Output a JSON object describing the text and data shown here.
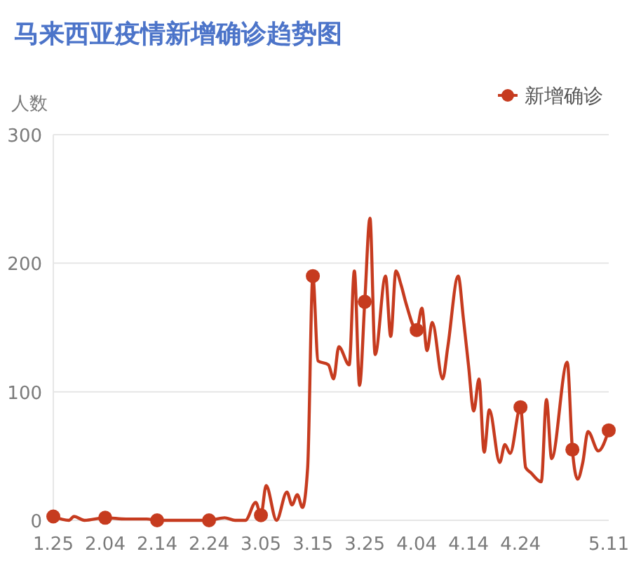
{
  "chart_data": {
    "type": "line",
    "title": "马来西亚疫情新增确诊趋势图",
    "ylabel": "人数",
    "x": [
      "--01-25",
      "--01-28",
      "--01-29",
      "--01-31",
      "--02-04",
      "--02-08",
      "--02-12",
      "--02-14",
      "--02-18",
      "--02-24",
      "--02-27",
      "--02-29",
      "--03-02",
      "--03-04",
      "--03-05",
      "--03-06",
      "--03-08",
      "--03-10",
      "--03-11",
      "--03-12",
      "--03-13",
      "--03-14",
      "--03-15",
      "--03-16",
      "--03-18",
      "--03-19",
      "--03-20",
      "--03-22",
      "--03-23",
      "--03-24",
      "--03-25",
      "--03-26",
      "--03-27",
      "--03-29",
      "--03-30",
      "--03-31",
      "--04-01",
      "--04-02",
      "--04-04",
      "--04-05",
      "--04-06",
      "--04-07",
      "--04-09",
      "--04-10",
      "--04-12",
      "--04-13",
      "--04-14",
      "--04-15",
      "--04-16",
      "--04-17",
      "--04-18",
      "--04-20",
      "--04-21",
      "--04-22",
      "--04-24",
      "--04-25",
      "--04-26",
      "--04-28",
      "--04-29",
      "--04-30",
      "--05-03",
      "--05-04",
      "--05-05",
      "--05-06",
      "--05-07",
      "--05-09",
      "--05-11"
    ],
    "series": [
      {
        "name": "新增确诊",
        "color": "#c63b1f",
        "values": [
          3,
          0,
          3,
          0,
          2,
          1,
          1,
          0,
          0,
          0,
          2,
          0,
          0,
          14,
          4,
          27,
          0,
          22,
          12,
          20,
          10,
          41,
          190,
          124,
          121,
          110,
          135,
          121,
          194,
          105,
          170,
          235,
          129,
          190,
          143,
          194,
          183,
          168,
          148,
          165,
          132,
          154,
          110,
          135,
          190,
          157,
          120,
          85,
          110,
          53,
          86,
          45,
          59,
          52,
          88,
          41,
          37,
          30,
          94,
          48,
          123,
          55,
          32,
          45,
          69,
          54,
          70
        ]
      },
      {
        "type": "scatter",
        "marker": "circle",
        "color": "#c63b1f",
        "x": [
          "--01-25",
          "--02-04",
          "--02-14",
          "--02-24",
          "--03-05",
          "--03-15",
          "--03-25",
          "--04-04",
          "--04-24",
          "--05-04",
          "--05-11"
        ],
        "values": [
          3,
          2,
          0,
          0,
          4,
          190,
          170,
          148,
          88,
          55,
          70
        ]
      }
    ],
    "xlim": [
      "--01-25",
      "--05-11"
    ],
    "xticks": [
      {
        "value": "--01-25",
        "label": "1.25"
      },
      {
        "value": "--02-04",
        "label": "2.04"
      },
      {
        "value": "--02-14",
        "label": "2.14"
      },
      {
        "value": "--02-24",
        "label": "2.24"
      },
      {
        "value": "--03-05",
        "label": "3.05"
      },
      {
        "value": "--03-15",
        "label": "3.15"
      },
      {
        "value": "--03-25",
        "label": "3.25"
      },
      {
        "value": "--04-04",
        "label": "4.04"
      },
      {
        "value": "--04-14",
        "label": "4.14"
      },
      {
        "value": "--04-24",
        "label": "4.24"
      },
      {
        "value": "--05-11",
        "label": "5.11"
      }
    ],
    "ylim": [
      0,
      300
    ],
    "yticks": [
      0,
      100,
      200,
      300
    ],
    "grid": "y",
    "legend": "top right",
    "line_style": "solid"
  }
}
